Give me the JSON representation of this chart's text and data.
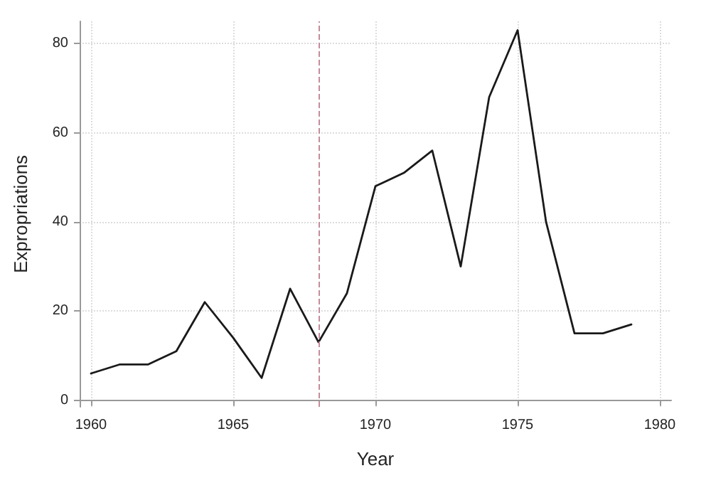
{
  "chart_data": {
    "type": "line",
    "xlabel": "Year",
    "ylabel": "Expropriations",
    "x": [
      1960,
      1961,
      1962,
      1963,
      1964,
      1965,
      1966,
      1967,
      1968,
      1969,
      1970,
      1971,
      1972,
      1973,
      1974,
      1975,
      1976,
      1977,
      1978,
      1979
    ],
    "series": [
      {
        "color": "#1a1a1a",
        "values": [
          6,
          8,
          8,
          11,
          22,
          14,
          5,
          25,
          13,
          24,
          48,
          51,
          56,
          30,
          68,
          83,
          40,
          15,
          15,
          17
        ]
      }
    ],
    "xlim": [
      1959.6,
      1980.4
    ],
    "xticks": [
      1960,
      1965,
      1970,
      1975,
      1980
    ],
    "ylim": [
      -1.5,
      85
    ],
    "yticks": [
      0,
      20,
      40,
      60,
      80
    ],
    "grid": true,
    "marker": "none",
    "line_style": "solid",
    "ref_lines": [
      {
        "axis": "x",
        "value": 1968,
        "color": "#d9829a",
        "line_style": "dashed"
      }
    ]
  }
}
